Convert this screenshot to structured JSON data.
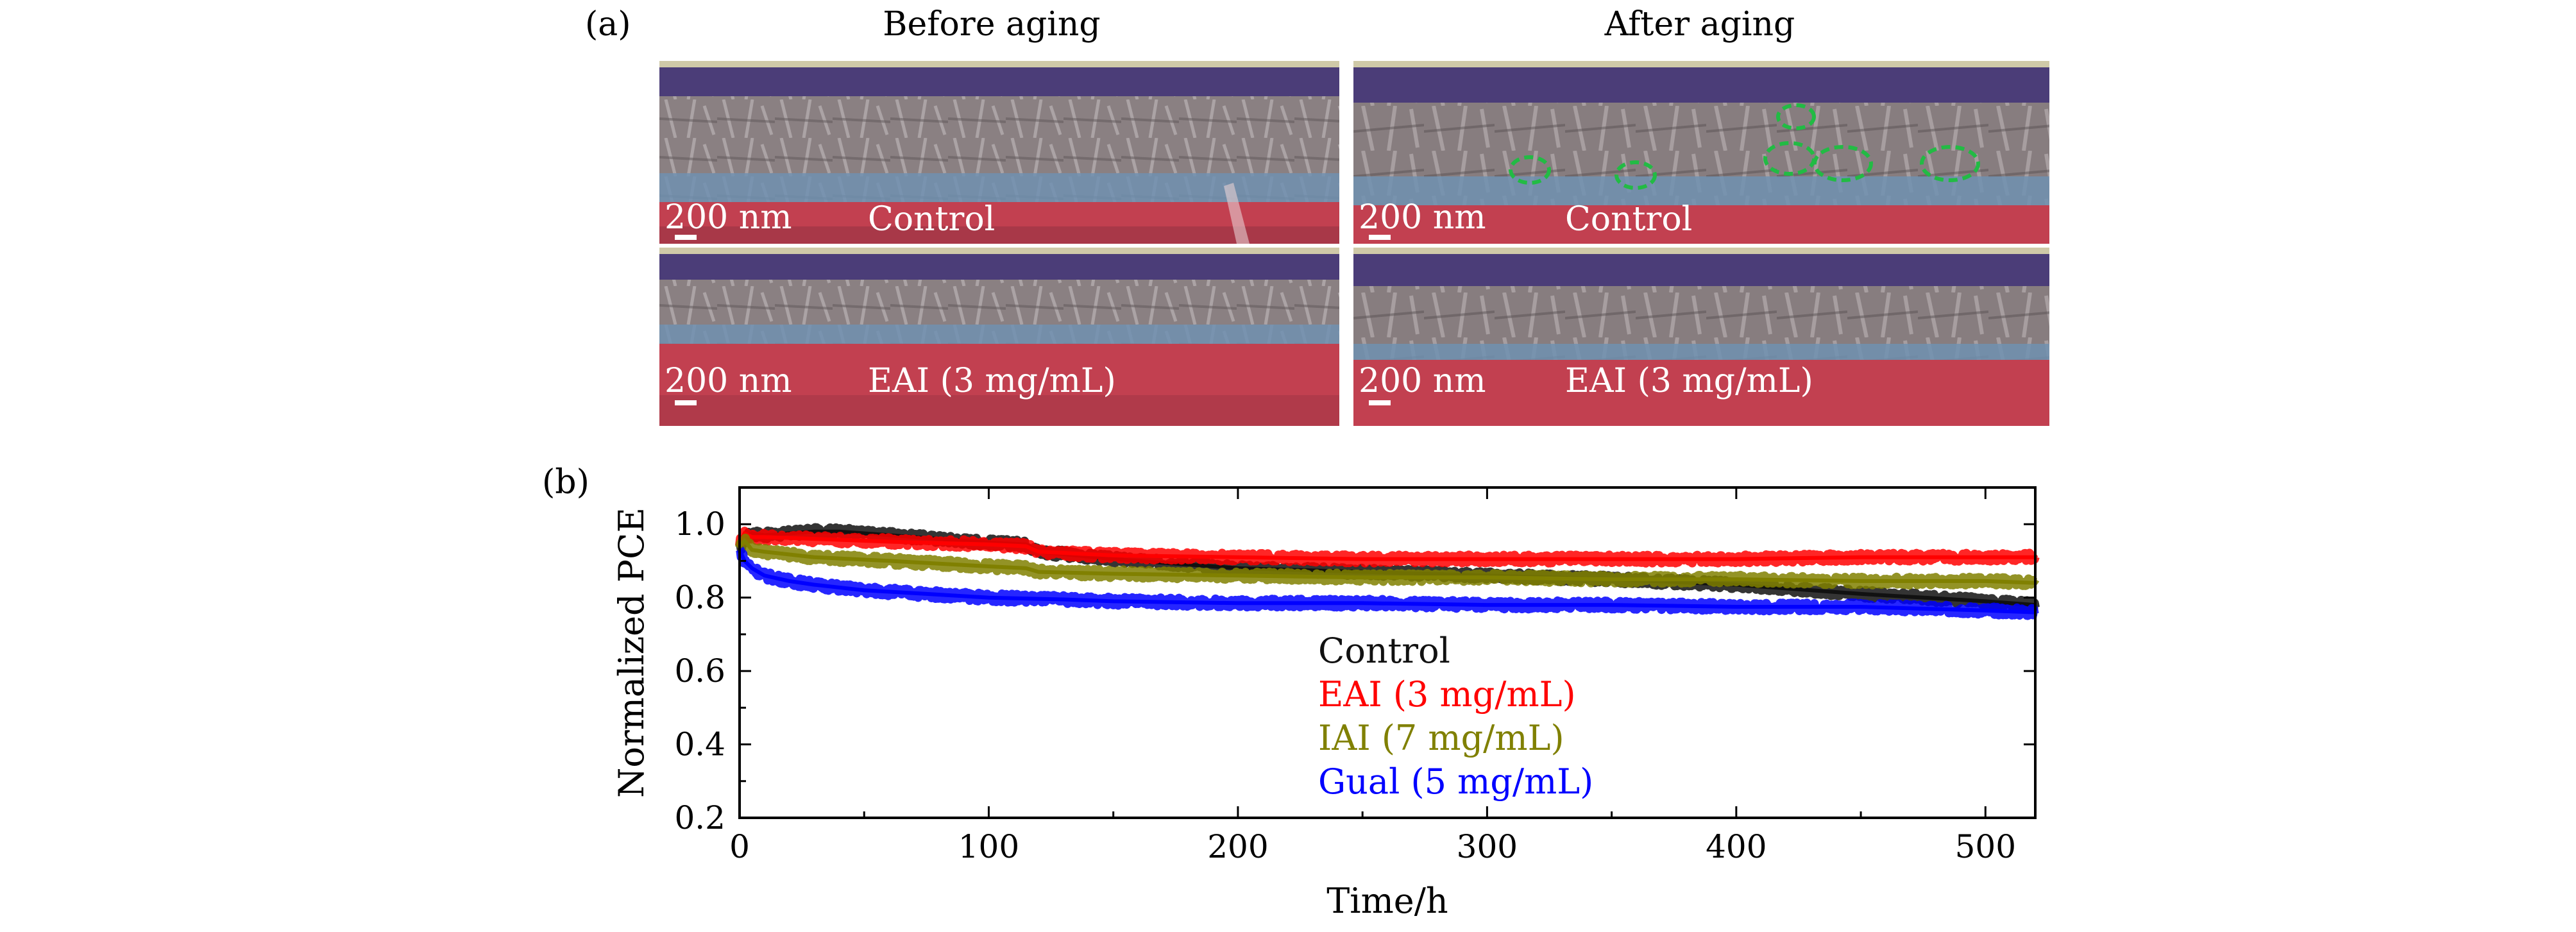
{
  "panel_a": {
    "label": "(a)",
    "before_title": "Before aging",
    "after_title": "After aging",
    "scale_bar": "200 nm",
    "samples": {
      "control": "Control",
      "eai": "EAI (3 mg/mL)"
    }
  },
  "panel_b": {
    "label": "(b)"
  },
  "colors": {
    "control": "#111111",
    "eai": "#ff0000",
    "iai": "#808000",
    "gual": "#0000ff",
    "sem_red": "#c0404c",
    "sem_blue": "#6f8fb0",
    "sem_purple": "#4a3c78",
    "defect_marker": "#22bb44"
  },
  "chart_data": {
    "type": "line",
    "xlabel": "Time/h",
    "ylabel": "Normalized PCE",
    "xlim": [
      0,
      520
    ],
    "ylim": [
      0.2,
      1.1
    ],
    "xticks": [
      0,
      100,
      200,
      300,
      400,
      500
    ],
    "yticks": [
      0.2,
      0.4,
      0.6,
      0.8,
      1.0
    ],
    "x_tick_labels": [
      "0",
      "100",
      "200",
      "300",
      "400",
      "500"
    ],
    "y_tick_labels": [
      "0.2",
      "0.4",
      "0.6",
      "0.8",
      "1.0"
    ],
    "legend": "center",
    "series": [
      {
        "name": "Control",
        "x": [
          0,
          2,
          5,
          10,
          20,
          30,
          40,
          50,
          60,
          80,
          100,
          115,
          120,
          150,
          200,
          250,
          300,
          350,
          400,
          450,
          500,
          520
        ],
        "values": [
          0.93,
          0.96,
          0.975,
          0.97,
          0.975,
          0.98,
          0.98,
          0.975,
          0.97,
          0.96,
          0.95,
          0.945,
          0.925,
          0.905,
          0.88,
          0.87,
          0.86,
          0.85,
          0.835,
          0.81,
          0.79,
          0.78
        ]
      },
      {
        "name": "EAI (3 mg/mL)",
        "x": [
          0,
          2,
          5,
          10,
          30,
          50,
          70,
          100,
          115,
          120,
          150,
          200,
          250,
          300,
          350,
          400,
          450,
          500,
          520
        ],
        "values": [
          0.95,
          0.975,
          0.965,
          0.965,
          0.96,
          0.955,
          0.95,
          0.945,
          0.94,
          0.925,
          0.915,
          0.91,
          0.905,
          0.905,
          0.905,
          0.905,
          0.91,
          0.91,
          0.91
        ]
      },
      {
        "name": "IAI (7 mg/mL)",
        "x": [
          0,
          2,
          5,
          10,
          30,
          60,
          100,
          115,
          120,
          150,
          200,
          250,
          300,
          350,
          400,
          450,
          500,
          520
        ],
        "values": [
          0.94,
          0.955,
          0.93,
          0.925,
          0.91,
          0.9,
          0.885,
          0.88,
          0.87,
          0.865,
          0.86,
          0.855,
          0.855,
          0.85,
          0.85,
          0.845,
          0.845,
          0.84
        ]
      },
      {
        "name": "Gual (5 mg/mL)",
        "x": [
          0,
          2,
          5,
          10,
          20,
          30,
          50,
          75,
          100,
          130,
          150,
          200,
          250,
          300,
          350,
          400,
          450,
          500,
          520
        ],
        "values": [
          0.93,
          0.9,
          0.88,
          0.86,
          0.845,
          0.835,
          0.82,
          0.81,
          0.8,
          0.795,
          0.79,
          0.785,
          0.785,
          0.78,
          0.78,
          0.775,
          0.775,
          0.765,
          0.76
        ]
      }
    ]
  }
}
